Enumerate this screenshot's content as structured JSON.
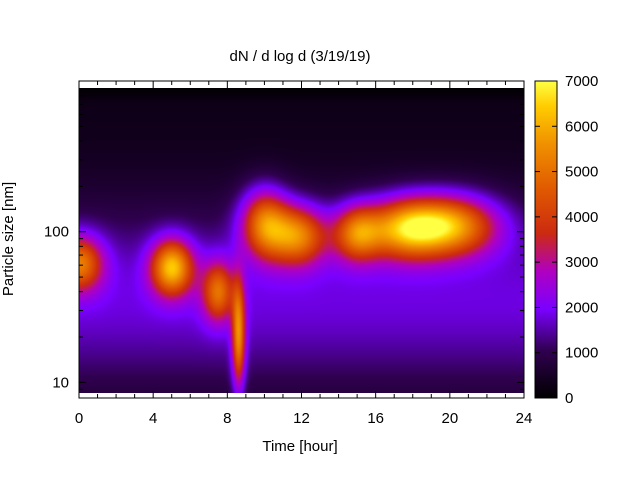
{
  "chart_data": {
    "type": "heatmap",
    "title": "dN / d log d (3/19/19)",
    "xlabel": "Time [hour]",
    "ylabel": "Particle size [nm]",
    "x_range": [
      0,
      24
    ],
    "x_ticks": [
      "0",
      "4",
      "8",
      "12",
      "16",
      "20",
      "24"
    ],
    "y_range_nm": [
      8.5,
      900
    ],
    "y_scale": "log",
    "y_ticks": [
      {
        "value": 10,
        "label": "10"
      },
      {
        "value": 100,
        "label": "100"
      }
    ],
    "colorbar": {
      "range": [
        0,
        7000
      ],
      "ticks": [
        "0",
        "1000",
        "2000",
        "3000",
        "4000",
        "5000",
        "6000",
        "7000"
      ],
      "palette": [
        "#000000",
        "#7a00ff",
        "#cc3300",
        "#ffcc00",
        "#ffff44"
      ]
    },
    "background_level": 1500,
    "features": [
      {
        "t": 0.0,
        "d_nm": 62,
        "peak": 3700,
        "sigma_t": 0.9,
        "sigma_logd": 0.13
      },
      {
        "t": 5.0,
        "d_nm": 58,
        "peak": 4800,
        "sigma_t": 0.8,
        "sigma_logd": 0.13
      },
      {
        "t": 7.5,
        "d_nm": 40,
        "peak": 3300,
        "sigma_t": 0.6,
        "sigma_logd": 0.14
      },
      {
        "t": 8.6,
        "d_nm": 20,
        "peak": 4000,
        "sigma_t": 0.25,
        "sigma_logd": 0.25
      },
      {
        "t": 10.0,
        "d_nm": 115,
        "peak": 3900,
        "sigma_t": 0.9,
        "sigma_logd": 0.16
      },
      {
        "t": 11.8,
        "d_nm": 95,
        "peak": 4100,
        "sigma_t": 1.1,
        "sigma_logd": 0.14
      },
      {
        "t": 15.0,
        "d_nm": 98,
        "peak": 3600,
        "sigma_t": 0.9,
        "sigma_logd": 0.13
      },
      {
        "t": 17.5,
        "d_nm": 105,
        "peak": 4000,
        "sigma_t": 1.5,
        "sigma_logd": 0.14
      },
      {
        "t": 20.0,
        "d_nm": 110,
        "peak": 4700,
        "sigma_t": 1.8,
        "sigma_logd": 0.14
      }
    ]
  }
}
